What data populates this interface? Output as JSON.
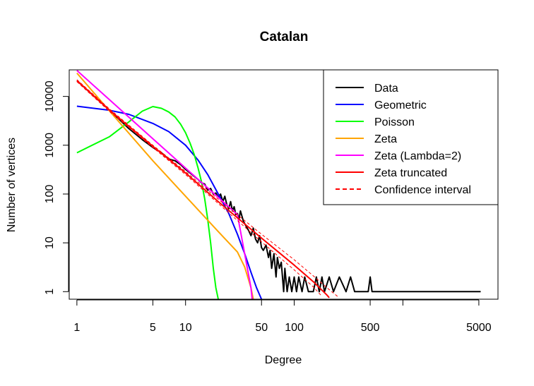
{
  "chart_data": {
    "type": "line",
    "title": "Catalan",
    "xlabel": "Degree",
    "ylabel": "Number of vertices",
    "xscale": "log",
    "yscale": "log",
    "xlim": [
      0.85,
      7500
    ],
    "ylim": [
      0.7,
      35000
    ],
    "xticks": [
      1,
      5,
      10,
      50,
      100,
      500,
      5000
    ],
    "xticks_unlabeled": [
      1000
    ],
    "yticks": [
      1,
      10,
      100,
      1000,
      10000
    ],
    "legend_position": "top-right",
    "series": [
      {
        "name": "Data",
        "color": "#000000",
        "style": "solid",
        "points": [
          [
            1,
            21000
          ],
          [
            2,
            5200
          ],
          [
            3,
            2200
          ],
          [
            4,
            1300
          ],
          [
            5,
            900
          ],
          [
            6,
            700
          ],
          [
            7,
            520
          ],
          [
            8,
            480
          ],
          [
            9,
            400
          ],
          [
            10,
            320
          ],
          [
            11,
            270
          ],
          [
            12,
            230
          ],
          [
            13,
            200
          ],
          [
            14,
            170
          ],
          [
            15,
            160
          ],
          [
            16,
            120
          ],
          [
            17,
            130
          ],
          [
            18,
            100
          ],
          [
            19,
            105
          ],
          [
            20,
            85
          ],
          [
            21,
            100
          ],
          [
            22,
            70
          ],
          [
            23,
            90
          ],
          [
            24,
            60
          ],
          [
            25,
            50
          ],
          [
            26,
            70
          ],
          [
            27,
            45
          ],
          [
            28,
            55
          ],
          [
            29,
            38
          ],
          [
            30,
            40
          ],
          [
            31,
            30
          ],
          [
            32,
            45
          ],
          [
            34,
            28
          ],
          [
            36,
            22
          ],
          [
            38,
            18
          ],
          [
            40,
            14
          ],
          [
            42,
            20
          ],
          [
            44,
            12
          ],
          [
            46,
            10
          ],
          [
            48,
            14
          ],
          [
            50,
            8
          ],
          [
            52,
            7
          ],
          [
            55,
            9
          ],
          [
            58,
            5
          ],
          [
            60,
            7
          ],
          [
            62,
            3
          ],
          [
            65,
            6
          ],
          [
            68,
            2
          ],
          [
            70,
            5
          ],
          [
            73,
            3
          ],
          [
            76,
            4
          ],
          [
            80,
            1
          ],
          [
            82,
            3
          ],
          [
            86,
            1
          ],
          [
            90,
            2
          ],
          [
            95,
            1
          ],
          [
            100,
            2
          ],
          [
            105,
            1
          ],
          [
            110,
            2
          ],
          [
            118,
            1
          ],
          [
            125,
            2
          ],
          [
            135,
            1
          ],
          [
            150,
            1
          ],
          [
            160,
            2
          ],
          [
            170,
            1
          ],
          [
            180,
            2
          ],
          [
            190,
            1
          ],
          [
            210,
            2
          ],
          [
            230,
            1
          ],
          [
            260,
            2
          ],
          [
            300,
            1
          ],
          [
            330,
            2
          ],
          [
            360,
            1
          ],
          [
            480,
            1
          ],
          [
            500,
            2
          ],
          [
            520,
            1
          ],
          [
            5200,
            1
          ]
        ]
      },
      {
        "name": "Geometric",
        "color": "#0000ff",
        "style": "solid",
        "points": [
          [
            1,
            6300
          ],
          [
            2,
            5200
          ],
          [
            3,
            4300
          ],
          [
            5,
            2800
          ],
          [
            7,
            1900
          ],
          [
            10,
            1000
          ],
          [
            13,
            500
          ],
          [
            16,
            250
          ],
          [
            20,
            100
          ],
          [
            25,
            40
          ],
          [
            30,
            15
          ],
          [
            35,
            6
          ],
          [
            40,
            2.5
          ],
          [
            45,
            1.2
          ],
          [
            50,
            0.7
          ]
        ]
      },
      {
        "name": "Poisson",
        "color": "#00ff00",
        "style": "solid",
        "points": [
          [
            1,
            700
          ],
          [
            2,
            1500
          ],
          [
            3,
            3000
          ],
          [
            4,
            5000
          ],
          [
            5,
            6200
          ],
          [
            6,
            5700
          ],
          [
            7,
            4800
          ],
          [
            8,
            3800
          ],
          [
            9,
            2700
          ],
          [
            10,
            1800
          ],
          [
            11,
            1100
          ],
          [
            12,
            650
          ],
          [
            13,
            350
          ],
          [
            14,
            180
          ],
          [
            15,
            80
          ],
          [
            16,
            30
          ],
          [
            17,
            10
          ],
          [
            18,
            3
          ],
          [
            19,
            1.2
          ],
          [
            20,
            0.7
          ]
        ]
      },
      {
        "name": "Zeta",
        "color": "#ffa500",
        "style": "solid",
        "points": [
          [
            1,
            30000
          ],
          [
            2,
            5000
          ],
          [
            5,
            480
          ],
          [
            10,
            90
          ],
          [
            20,
            17
          ],
          [
            30,
            6.5
          ],
          [
            35,
            3.2
          ],
          [
            40,
            1.2
          ],
          [
            42,
            0.7
          ]
        ]
      },
      {
        "name": "Zeta (Lambda=2)",
        "color": "#ff00ff",
        "style": "solid",
        "points": [
          [
            1,
            34000
          ],
          [
            2,
            8500
          ],
          [
            5,
            1360
          ],
          [
            10,
            340
          ],
          [
            20,
            85
          ],
          [
            30,
            38
          ],
          [
            40,
            1.2
          ],
          [
            41,
            0.7
          ]
        ]
      },
      {
        "name": "Zeta truncated",
        "color": "#ff0000",
        "style": "solid",
        "points": [
          [
            1,
            21000
          ],
          [
            2,
            5200
          ],
          [
            5,
            950
          ],
          [
            10,
            270
          ],
          [
            20,
            70
          ],
          [
            50,
            12.5
          ],
          [
            100,
            3.5
          ],
          [
            150,
            1.6
          ],
          [
            200,
            0.85
          ],
          [
            210,
            0.75
          ]
        ]
      },
      {
        "name": "Confidence interval",
        "color": "#ff0000",
        "style": "dashed",
        "points": [
          [
            1,
            22000
          ],
          [
            2,
            5500
          ],
          [
            5,
            1000
          ],
          [
            10,
            290
          ],
          [
            20,
            78
          ],
          [
            50,
            15
          ],
          [
            100,
            4.5
          ],
          [
            150,
            2.1
          ],
          [
            200,
            1.2
          ],
          [
            250,
            0.8
          ]
        ]
      },
      {
        "name": "",
        "color": "#ff0000",
        "style": "dashed",
        "points": [
          [
            1,
            20000
          ],
          [
            2,
            4900
          ],
          [
            5,
            900
          ],
          [
            10,
            250
          ],
          [
            20,
            64
          ],
          [
            50,
            10.5
          ],
          [
            100,
            2.8
          ],
          [
            150,
            1.25
          ],
          [
            180,
            0.8
          ]
        ]
      }
    ],
    "legend": [
      {
        "label": "Data",
        "color": "#000000",
        "style": "solid"
      },
      {
        "label": "Geometric",
        "color": "#0000ff",
        "style": "solid"
      },
      {
        "label": "Poisson",
        "color": "#00ff00",
        "style": "solid"
      },
      {
        "label": "Zeta",
        "color": "#ffa500",
        "style": "solid"
      },
      {
        "label": "Zeta (Lambda=2)",
        "color": "#ff00ff",
        "style": "solid"
      },
      {
        "label": "Zeta truncated",
        "color": "#ff0000",
        "style": "solid"
      },
      {
        "label": "Confidence interval",
        "color": "#ff0000",
        "style": "dashed"
      }
    ]
  }
}
